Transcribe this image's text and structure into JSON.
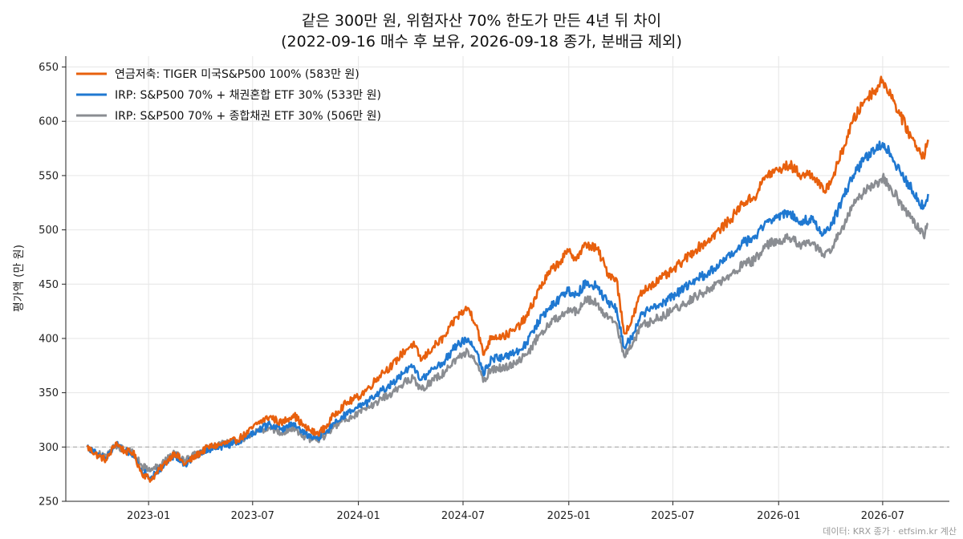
{
  "chart_data": {
    "type": "line",
    "title": "같은 300만 원, 위험자산 70% 한도가 만든 4년 뒤 차이",
    "subtitle": "(2022-09-16 매수 후 보유, 2026-09-18 종가, 분배금 제외)",
    "ylabel": "평가액 (만 원)",
    "xlabel": "",
    "ylim": [
      250,
      660
    ],
    "xlim": [
      "2022-08-10",
      "2026-10-25"
    ],
    "y_ticks": [
      250,
      300,
      350,
      400,
      450,
      500,
      550,
      600,
      650
    ],
    "x_ticks": [
      {
        "date": "2023-01-01",
        "label": "2023-01"
      },
      {
        "date": "2023-07-01",
        "label": "2023-07"
      },
      {
        "date": "2024-01-01",
        "label": "2024-01"
      },
      {
        "date": "2024-07-01",
        "label": "2024-07"
      },
      {
        "date": "2025-01-01",
        "label": "2025-01"
      },
      {
        "date": "2025-07-01",
        "label": "2025-07"
      },
      {
        "date": "2026-01-01",
        "label": "2026-01"
      },
      {
        "date": "2026-07-01",
        "label": "2026-07"
      }
    ],
    "reference_line": {
      "y": 300,
      "style": "dashed",
      "color": "#aaaaaa"
    },
    "grid": true,
    "legend_position": "top-left",
    "source_note": "데이터: KRX 종가 · etfsim.kr 계산",
    "series": [
      {
        "name": "연금저축: TIGER 미국S&P500 100%  (583만 원)",
        "color": "#e8600d",
        "points": [
          [
            "2022-09-16",
            300
          ],
          [
            "2022-10-05",
            292
          ],
          [
            "2022-10-20",
            288
          ],
          [
            "2022-11-05",
            304
          ],
          [
            "2022-11-20",
            296
          ],
          [
            "2022-12-05",
            295
          ],
          [
            "2022-12-20",
            276
          ],
          [
            "2023-01-05",
            270
          ],
          [
            "2023-01-25",
            282
          ],
          [
            "2023-02-15",
            295
          ],
          [
            "2023-03-05",
            284
          ],
          [
            "2023-03-25",
            292
          ],
          [
            "2023-04-15",
            300
          ],
          [
            "2023-05-05",
            302
          ],
          [
            "2023-06-01",
            306
          ],
          [
            "2023-06-20",
            312
          ],
          [
            "2023-07-10",
            322
          ],
          [
            "2023-07-31",
            328
          ],
          [
            "2023-08-20",
            322
          ],
          [
            "2023-09-10",
            330
          ],
          [
            "2023-09-30",
            318
          ],
          [
            "2023-10-20",
            312
          ],
          [
            "2023-11-05",
            318
          ],
          [
            "2023-11-20",
            330
          ],
          [
            "2023-12-10",
            340
          ],
          [
            "2023-12-31",
            346
          ],
          [
            "2024-01-20",
            355
          ],
          [
            "2024-02-10",
            368
          ],
          [
            "2024-02-29",
            375
          ],
          [
            "2024-03-20",
            388
          ],
          [
            "2024-04-05",
            395
          ],
          [
            "2024-04-20",
            380
          ],
          [
            "2024-05-10",
            392
          ],
          [
            "2024-05-31",
            402
          ],
          [
            "2024-06-20",
            420
          ],
          [
            "2024-07-10",
            428
          ],
          [
            "2024-07-25",
            412
          ],
          [
            "2024-08-05",
            385
          ],
          [
            "2024-08-20",
            402
          ],
          [
            "2024-09-10",
            402
          ],
          [
            "2024-09-30",
            408
          ],
          [
            "2024-10-20",
            420
          ],
          [
            "2024-11-10",
            445
          ],
          [
            "2024-11-30",
            462
          ],
          [
            "2024-12-15",
            470
          ],
          [
            "2024-12-31",
            480
          ],
          [
            "2025-01-15",
            474
          ],
          [
            "2025-01-31",
            487
          ],
          [
            "2025-02-20",
            482
          ],
          [
            "2025-03-10",
            460
          ],
          [
            "2025-03-25",
            455
          ],
          [
            "2025-04-07",
            405
          ],
          [
            "2025-04-20",
            415
          ],
          [
            "2025-05-05",
            440
          ],
          [
            "2025-05-20",
            448
          ],
          [
            "2025-06-10",
            455
          ],
          [
            "2025-06-30",
            462
          ],
          [
            "2025-07-20",
            472
          ],
          [
            "2025-08-10",
            482
          ],
          [
            "2025-08-31",
            490
          ],
          [
            "2025-09-20",
            500
          ],
          [
            "2025-10-10",
            510
          ],
          [
            "2025-10-31",
            525
          ],
          [
            "2025-11-20",
            530
          ],
          [
            "2025-12-10",
            550
          ],
          [
            "2025-12-31",
            555
          ],
          [
            "2026-01-20",
            560
          ],
          [
            "2026-02-10",
            550
          ],
          [
            "2026-02-28",
            552
          ],
          [
            "2026-03-20",
            535
          ],
          [
            "2026-04-05",
            548
          ],
          [
            "2026-04-20",
            570
          ],
          [
            "2026-05-10",
            600
          ],
          [
            "2026-05-31",
            620
          ],
          [
            "2026-06-20",
            630
          ],
          [
            "2026-07-01",
            638
          ],
          [
            "2026-07-15",
            625
          ],
          [
            "2026-08-01",
            605
          ],
          [
            "2026-08-20",
            585
          ],
          [
            "2026-09-10",
            568
          ],
          [
            "2026-09-18",
            583
          ]
        ]
      },
      {
        "name": "IRP: S&P500 70% + 채권혼합 ETF 30%  (533만 원)",
        "color": "#1f78d1",
        "points": [
          [
            "2022-09-16",
            300
          ],
          [
            "2022-10-05",
            293
          ],
          [
            "2022-10-20",
            290
          ],
          [
            "2022-11-05",
            303
          ],
          [
            "2022-11-20",
            296
          ],
          [
            "2022-12-05",
            294
          ],
          [
            "2022-12-20",
            278
          ],
          [
            "2023-01-05",
            272
          ],
          [
            "2023-01-25",
            282
          ],
          [
            "2023-02-15",
            293
          ],
          [
            "2023-03-05",
            284
          ],
          [
            "2023-03-25",
            291
          ],
          [
            "2023-04-15",
            298
          ],
          [
            "2023-05-05",
            300
          ],
          [
            "2023-06-01",
            304
          ],
          [
            "2023-06-20",
            309
          ],
          [
            "2023-07-10",
            316
          ],
          [
            "2023-07-31",
            321
          ],
          [
            "2023-08-20",
            316
          ],
          [
            "2023-09-10",
            322
          ],
          [
            "2023-09-30",
            312
          ],
          [
            "2023-10-20",
            308
          ],
          [
            "2023-11-05",
            313
          ],
          [
            "2023-11-20",
            322
          ],
          [
            "2023-12-10",
            330
          ],
          [
            "2023-12-31",
            336
          ],
          [
            "2024-01-20",
            342
          ],
          [
            "2024-02-10",
            352
          ],
          [
            "2024-02-29",
            358
          ],
          [
            "2024-03-20",
            368
          ],
          [
            "2024-04-05",
            374
          ],
          [
            "2024-04-20",
            362
          ],
          [
            "2024-05-10",
            372
          ],
          [
            "2024-05-31",
            380
          ],
          [
            "2024-06-20",
            394
          ],
          [
            "2024-07-10",
            400
          ],
          [
            "2024-07-25",
            388
          ],
          [
            "2024-08-05",
            368
          ],
          [
            "2024-08-20",
            382
          ],
          [
            "2024-09-10",
            382
          ],
          [
            "2024-09-30",
            387
          ],
          [
            "2024-10-20",
            396
          ],
          [
            "2024-11-10",
            416
          ],
          [
            "2024-11-30",
            430
          ],
          [
            "2024-12-15",
            436
          ],
          [
            "2024-12-31",
            444
          ],
          [
            "2025-01-15",
            440
          ],
          [
            "2025-01-31",
            452
          ],
          [
            "2025-02-20",
            448
          ],
          [
            "2025-03-10",
            432
          ],
          [
            "2025-03-25",
            428
          ],
          [
            "2025-04-07",
            392
          ],
          [
            "2025-04-20",
            400
          ],
          [
            "2025-05-05",
            420
          ],
          [
            "2025-05-20",
            426
          ],
          [
            "2025-06-10",
            432
          ],
          [
            "2025-06-30",
            438
          ],
          [
            "2025-07-20",
            446
          ],
          [
            "2025-08-10",
            454
          ],
          [
            "2025-08-31",
            460
          ],
          [
            "2025-09-20",
            468
          ],
          [
            "2025-10-10",
            476
          ],
          [
            "2025-10-31",
            488
          ],
          [
            "2025-11-20",
            492
          ],
          [
            "2025-12-10",
            508
          ],
          [
            "2025-12-31",
            512
          ],
          [
            "2026-01-20",
            516
          ],
          [
            "2026-02-10",
            508
          ],
          [
            "2026-02-28",
            510
          ],
          [
            "2026-03-20",
            496
          ],
          [
            "2026-04-05",
            507
          ],
          [
            "2026-04-20",
            525
          ],
          [
            "2026-05-10",
            550
          ],
          [
            "2026-05-31",
            566
          ],
          [
            "2026-06-20",
            574
          ],
          [
            "2026-07-01",
            580
          ],
          [
            "2026-07-15",
            570
          ],
          [
            "2026-08-01",
            553
          ],
          [
            "2026-08-20",
            538
          ],
          [
            "2026-09-10",
            520
          ],
          [
            "2026-09-18",
            533
          ]
        ]
      },
      {
        "name": "IRP: S&P500 70% + 종합채권 ETF 30%  (506만 원)",
        "color": "#8a8d92",
        "points": [
          [
            "2022-09-16",
            300
          ],
          [
            "2022-10-05",
            294
          ],
          [
            "2022-10-20",
            291
          ],
          [
            "2022-11-05",
            302
          ],
          [
            "2022-11-20",
            297
          ],
          [
            "2022-12-05",
            295
          ],
          [
            "2022-12-20",
            283
          ],
          [
            "2023-01-05",
            278
          ],
          [
            "2023-01-25",
            286
          ],
          [
            "2023-02-15",
            295
          ],
          [
            "2023-03-05",
            288
          ],
          [
            "2023-03-25",
            294
          ],
          [
            "2023-04-15",
            300
          ],
          [
            "2023-05-05",
            302
          ],
          [
            "2023-06-01",
            305
          ],
          [
            "2023-06-20",
            309
          ],
          [
            "2023-07-10",
            314
          ],
          [
            "2023-07-31",
            318
          ],
          [
            "2023-08-20",
            313
          ],
          [
            "2023-09-10",
            318
          ],
          [
            "2023-09-30",
            309
          ],
          [
            "2023-10-20",
            306
          ],
          [
            "2023-11-05",
            311
          ],
          [
            "2023-11-20",
            319
          ],
          [
            "2023-12-10",
            326
          ],
          [
            "2023-12-31",
            331
          ],
          [
            "2024-01-20",
            336
          ],
          [
            "2024-02-10",
            345
          ],
          [
            "2024-02-29",
            350
          ],
          [
            "2024-03-20",
            359
          ],
          [
            "2024-04-05",
            364
          ],
          [
            "2024-04-20",
            353
          ],
          [
            "2024-05-10",
            362
          ],
          [
            "2024-05-31",
            369
          ],
          [
            "2024-06-20",
            382
          ],
          [
            "2024-07-10",
            388
          ],
          [
            "2024-07-25",
            377
          ],
          [
            "2024-08-05",
            360
          ],
          [
            "2024-08-20",
            372
          ],
          [
            "2024-09-10",
            373
          ],
          [
            "2024-09-30",
            377
          ],
          [
            "2024-10-20",
            385
          ],
          [
            "2024-11-10",
            403
          ],
          [
            "2024-11-30",
            415
          ],
          [
            "2024-12-15",
            420
          ],
          [
            "2024-12-31",
            428
          ],
          [
            "2025-01-15",
            424
          ],
          [
            "2025-01-31",
            436
          ],
          [
            "2025-02-20",
            432
          ],
          [
            "2025-03-10",
            418
          ],
          [
            "2025-03-25",
            414
          ],
          [
            "2025-04-07",
            384
          ],
          [
            "2025-04-20",
            392
          ],
          [
            "2025-05-05",
            410
          ],
          [
            "2025-05-20",
            415
          ],
          [
            "2025-06-10",
            420
          ],
          [
            "2025-06-30",
            425
          ],
          [
            "2025-07-20",
            432
          ],
          [
            "2025-08-10",
            439
          ],
          [
            "2025-08-31",
            444
          ],
          [
            "2025-09-20",
            451
          ],
          [
            "2025-10-10",
            458
          ],
          [
            "2025-10-31",
            468
          ],
          [
            "2025-11-20",
            472
          ],
          [
            "2025-12-10",
            486
          ],
          [
            "2025-12-31",
            490
          ],
          [
            "2026-01-20",
            493
          ],
          [
            "2026-02-10",
            486
          ],
          [
            "2026-02-28",
            488
          ],
          [
            "2026-03-20",
            476
          ],
          [
            "2026-04-05",
            485
          ],
          [
            "2026-04-20",
            500
          ],
          [
            "2026-05-10",
            522
          ],
          [
            "2026-05-31",
            536
          ],
          [
            "2026-06-20",
            543
          ],
          [
            "2026-07-01",
            548
          ],
          [
            "2026-07-15",
            539
          ],
          [
            "2026-08-01",
            525
          ],
          [
            "2026-08-20",
            511
          ],
          [
            "2026-09-10",
            494
          ],
          [
            "2026-09-18",
            506
          ]
        ]
      }
    ]
  }
}
